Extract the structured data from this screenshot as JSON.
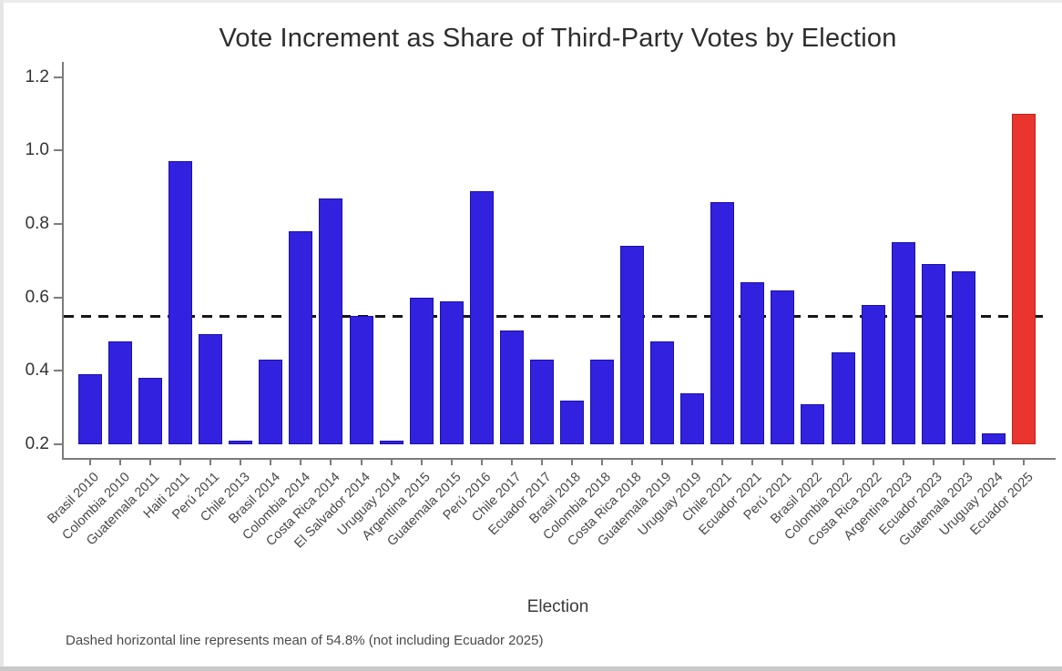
{
  "figure": {
    "title": "Vote Increment as Share of Third-Party Votes by Election",
    "xlabel": "Election",
    "caption": "Dashed horizontal line represents mean of 54.8% (not including Ecuador 2025)"
  },
  "chart_data": {
    "type": "bar",
    "title": "Vote Increment as Share of Third-Party Votes by Election",
    "xlabel": "Election",
    "ylabel": "",
    "categories": [
      "Brasil 2010",
      "Colombia 2010",
      "Guatemala 2011",
      "Haiti 2011",
      "Perú 2011",
      "Chile 2013",
      "Brasil 2014",
      "Colombia 2014",
      "Costa Rica 2014",
      "El Salvador 2014",
      "Uruguay 2014",
      "Argentina 2015",
      "Guatemala 2015",
      "Perú 2016",
      "Chile 2017",
      "Ecuador 2017",
      "Brasil 2018",
      "Colombia 2018",
      "Costa Rica 2018",
      "Guatemala 2019",
      "Uruguay 2019",
      "Chile 2021",
      "Ecuador 2021",
      "Perú 2021",
      "Brasil 2022",
      "Colombia 2022",
      "Costa Rica 2022",
      "Argentina 2023",
      "Ecuador 2023",
      "Guatemala 2023",
      "Uruguay 2024",
      "Ecuador 2025"
    ],
    "values": [
      0.39,
      0.48,
      0.38,
      0.97,
      0.5,
      0.21,
      0.43,
      0.78,
      0.87,
      0.55,
      0.21,
      0.6,
      0.59,
      0.89,
      0.51,
      0.43,
      0.32,
      0.43,
      0.74,
      0.48,
      0.34,
      0.86,
      0.64,
      0.62,
      0.31,
      0.45,
      0.58,
      0.75,
      0.69,
      0.67,
      0.23,
      1.1
    ],
    "highlight_category": "Ecuador 2025",
    "colors": {
      "bar_fill": "#3222df",
      "bar_edge": "#1a12a6",
      "highlight_fill": "#e9352d",
      "highlight_edge": "#bf231d",
      "reference_line": "#161616",
      "axis": "#7c7c7c"
    },
    "reference_line": {
      "value": 0.548,
      "style": "dashed",
      "label": "mean of 54.8% (not including Ecuador 2025)"
    },
    "yticks": [
      0.2,
      0.4,
      0.6,
      0.8,
      1.0,
      1.2
    ],
    "ylim": [
      0.17,
      1.25
    ],
    "grid": false,
    "legend": false,
    "baseline_value": 0.2
  }
}
